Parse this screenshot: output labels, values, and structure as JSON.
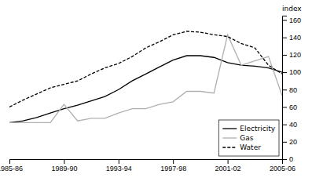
{
  "chart_data": {
    "type": "line",
    "y_label": "index",
    "categories": [
      "1985-86",
      null,
      null,
      null,
      "1989-90",
      null,
      null,
      null,
      "1993-94",
      null,
      null,
      null,
      "1997-98",
      null,
      null,
      null,
      "2001-02",
      null,
      null,
      null,
      "2005-06"
    ],
    "series": [
      {
        "name": "Electricity",
        "color": "#000000",
        "line_style": "solid",
        "values": [
          42,
          44,
          48,
          53,
          58,
          62,
          67,
          72,
          80,
          90,
          98,
          106,
          114,
          119,
          119,
          117,
          111,
          108,
          107,
          105,
          100
        ]
      },
      {
        "name": "Gas",
        "color": "#b0b0b0",
        "line_style": "solid",
        "values": [
          42,
          42,
          42,
          42,
          63,
          44,
          47,
          47,
          53,
          58,
          58,
          63,
          66,
          78,
          78,
          76,
          143,
          108,
          113,
          118,
          73
        ]
      },
      {
        "name": "Water",
        "color": "#000000",
        "line_style": "dashed",
        "values": [
          60,
          68,
          75,
          82,
          86,
          90,
          98,
          105,
          110,
          118,
          128,
          135,
          143,
          147,
          146,
          143,
          141,
          133,
          128,
          108,
          98
        ]
      }
    ],
    "ylim": [
      0,
      165
    ],
    "yticks": [
      0,
      20,
      40,
      60,
      80,
      100,
      120,
      140,
      160
    ],
    "legend": "lower right",
    "grid": false
  }
}
